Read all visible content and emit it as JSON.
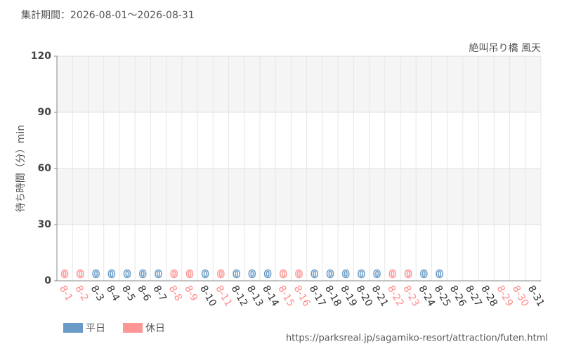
{
  "chart_data": {
    "type": "bar",
    "title": "集計期間：2026-08-01～2026-08-31",
    "subtitle": "絶叫吊り橋 風天",
    "y_label": "待ち時間（分）min",
    "source": "https://parksreal.jp/sagamiko-resort/attraction/futen.html",
    "categories": [
      "8-1",
      "8-2",
      "8-3",
      "8-4",
      "8-5",
      "8-6",
      "8-7",
      "8-8",
      "8-9",
      "8-10",
      "8-11",
      "8-12",
      "8-13",
      "8-14",
      "8-15",
      "8-16",
      "8-17",
      "8-18",
      "8-19",
      "8-20",
      "8-21",
      "8-22",
      "8-23",
      "8-24",
      "8-25",
      "8-26",
      "8-27",
      "8-28",
      "8-29",
      "8-30",
      "8-31"
    ],
    "category_colors": [
      "#ff8c8c",
      "#ff8c8c",
      "#333333",
      "#333333",
      "#333333",
      "#333333",
      "#333333",
      "#ff8c8c",
      "#ff8c8c",
      "#333333",
      "#ff8c8c",
      "#333333",
      "#333333",
      "#333333",
      "#ff8c8c",
      "#ff8c8c",
      "#333333",
      "#333333",
      "#333333",
      "#333333",
      "#333333",
      "#ff8c8c",
      "#ff8c8c",
      "#333333",
      "#333333",
      "#333333",
      "#333333",
      "#333333",
      "#ff8c8c",
      "#ff8c8c",
      "#333333"
    ],
    "series": [
      {
        "name": "平日",
        "color": "#6a9bc6",
        "values": [
          null,
          null,
          0,
          0,
          0,
          0,
          0,
          null,
          null,
          0,
          null,
          0,
          0,
          0,
          null,
          null,
          0,
          0,
          0,
          0,
          0,
          null,
          null,
          0,
          0,
          null,
          null,
          null,
          null,
          null,
          null
        ]
      },
      {
        "name": "休日",
        "color": "#ff9696",
        "values": [
          0,
          0,
          null,
          null,
          null,
          null,
          null,
          0,
          0,
          null,
          0,
          null,
          null,
          null,
          0,
          0,
          null,
          null,
          null,
          null,
          null,
          0,
          0,
          null,
          null,
          null,
          null,
          null,
          null,
          null,
          null
        ]
      }
    ],
    "ylim": [
      0,
      120
    ],
    "yticks": [
      0,
      30,
      60,
      90,
      120
    ],
    "grid": true,
    "bands": true,
    "legend": "bottom-left"
  }
}
